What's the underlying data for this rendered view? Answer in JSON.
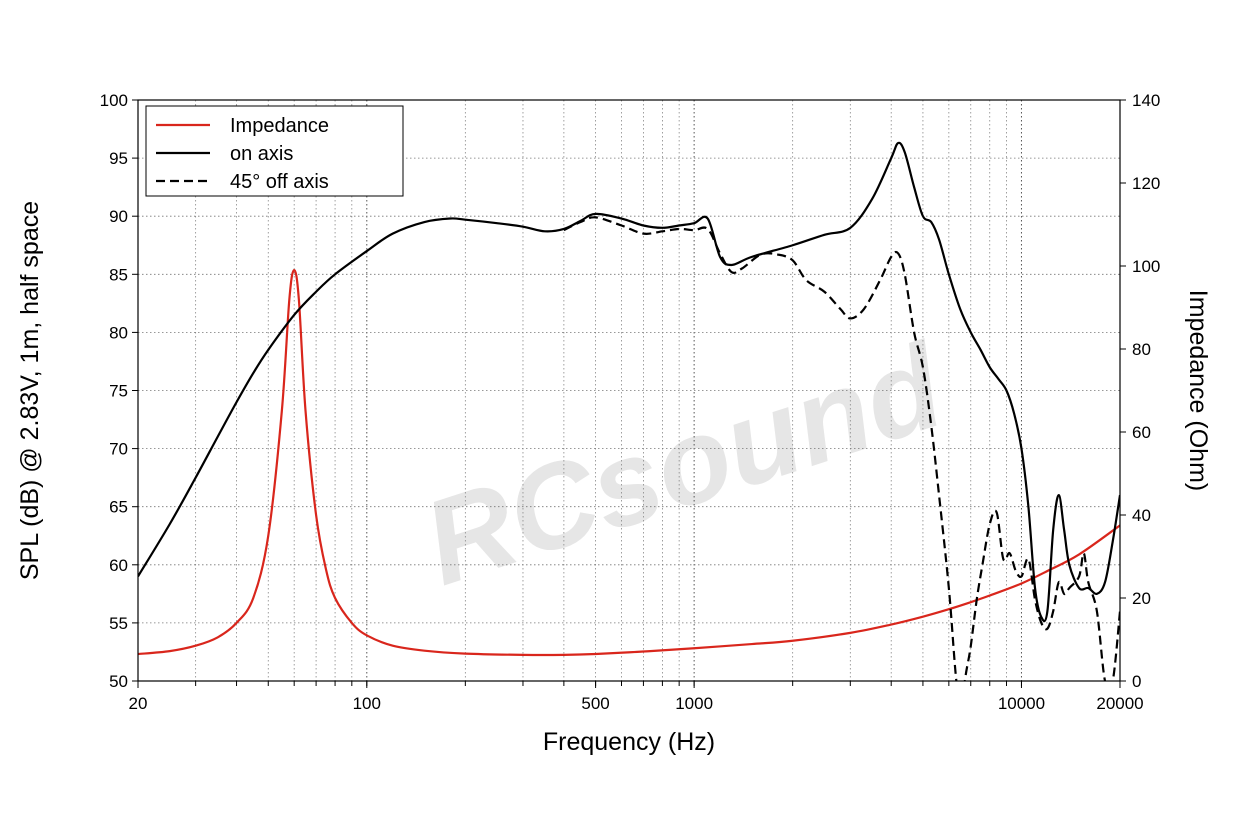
{
  "chart_data": {
    "type": "line",
    "watermark": "RCsound",
    "xaxis": {
      "label": "Frequency (Hz)",
      "scale": "log",
      "range": [
        20,
        20000
      ],
      "tick_labels": [
        {
          "value": 20,
          "text": "20"
        },
        {
          "value": 100,
          "text": "100"
        },
        {
          "value": 500,
          "text": "500"
        },
        {
          "value": 1000,
          "text": "1000"
        },
        {
          "value": 10000,
          "text": "10000"
        },
        {
          "value": 20000,
          "text": "20000"
        }
      ]
    },
    "yaxis_left": {
      "label": "SPL (dB) @ 2.83V, 1m, half space",
      "range": [
        50,
        100
      ],
      "ticks": [
        50,
        55,
        60,
        65,
        70,
        75,
        80,
        85,
        90,
        95,
        100
      ]
    },
    "yaxis_right": {
      "label": "Impedance (Ohm)",
      "range": [
        0,
        140
      ],
      "ticks": [
        0,
        20,
        40,
        60,
        80,
        100,
        120,
        140
      ]
    },
    "grid": true,
    "legend_position": "top-left",
    "series": [
      {
        "name": "Impedance",
        "axis": "right",
        "color": "#d9261c",
        "dash": "solid",
        "points": [
          [
            20,
            6.5
          ],
          [
            25,
            7.2
          ],
          [
            30,
            8.5
          ],
          [
            35,
            10.5
          ],
          [
            40,
            14
          ],
          [
            45,
            20
          ],
          [
            50,
            35
          ],
          [
            55,
            65
          ],
          [
            58,
            92
          ],
          [
            60,
            99
          ],
          [
            62,
            92
          ],
          [
            65,
            65
          ],
          [
            70,
            40
          ],
          [
            75,
            27
          ],
          [
            80,
            20
          ],
          [
            90,
            14
          ],
          [
            100,
            11
          ],
          [
            120,
            8.5
          ],
          [
            150,
            7.3
          ],
          [
            200,
            6.6
          ],
          [
            300,
            6.3
          ],
          [
            400,
            6.3
          ],
          [
            500,
            6.5
          ],
          [
            700,
            7.1
          ],
          [
            1000,
            7.9
          ],
          [
            1500,
            8.9
          ],
          [
            2000,
            9.7
          ],
          [
            3000,
            11.6
          ],
          [
            4000,
            13.6
          ],
          [
            5000,
            15.5
          ],
          [
            6000,
            17.3
          ],
          [
            7000,
            19
          ],
          [
            8000,
            20.6
          ],
          [
            10000,
            23.5
          ],
          [
            12000,
            26.5
          ],
          [
            15000,
            30.5
          ],
          [
            20000,
            37.5
          ]
        ]
      },
      {
        "name": "on axis",
        "axis": "left",
        "color": "#000000",
        "dash": "solid",
        "points": [
          [
            20,
            59
          ],
          [
            25,
            63.5
          ],
          [
            30,
            67.5
          ],
          [
            35,
            71
          ],
          [
            40,
            74
          ],
          [
            45,
            76.5
          ],
          [
            50,
            78.5
          ],
          [
            60,
            81.5
          ],
          [
            70,
            83.5
          ],
          [
            80,
            85
          ],
          [
            100,
            87
          ],
          [
            120,
            88.5
          ],
          [
            150,
            89.5
          ],
          [
            180,
            89.8
          ],
          [
            200,
            89.7
          ],
          [
            250,
            89.4
          ],
          [
            300,
            89.1
          ],
          [
            350,
            88.7
          ],
          [
            400,
            88.9
          ],
          [
            450,
            89.6
          ],
          [
            500,
            90.2
          ],
          [
            600,
            89.8
          ],
          [
            700,
            89.2
          ],
          [
            800,
            89
          ],
          [
            900,
            89.2
          ],
          [
            1000,
            89.4
          ],
          [
            1100,
            89.8
          ],
          [
            1200,
            86.5
          ],
          [
            1300,
            85.8
          ],
          [
            1500,
            86.5
          ],
          [
            2000,
            87.5
          ],
          [
            2500,
            88.4
          ],
          [
            3000,
            89
          ],
          [
            3500,
            91.5
          ],
          [
            4000,
            95
          ],
          [
            4200,
            96.3
          ],
          [
            4400,
            95.5
          ],
          [
            4700,
            92.5
          ],
          [
            5000,
            90
          ],
          [
            5300,
            89.5
          ],
          [
            5600,
            88
          ],
          [
            6000,
            85
          ],
          [
            6500,
            82
          ],
          [
            7000,
            80
          ],
          [
            7500,
            78.5
          ],
          [
            8000,
            77
          ],
          [
            8500,
            76
          ],
          [
            9000,
            75
          ],
          [
            9500,
            73
          ],
          [
            10000,
            70
          ],
          [
            10500,
            65
          ],
          [
            11000,
            58
          ],
          [
            11500,
            55.5
          ],
          [
            12000,
            56
          ],
          [
            12500,
            63
          ],
          [
            13000,
            66
          ],
          [
            13500,
            63
          ],
          [
            14000,
            60
          ],
          [
            15000,
            58
          ],
          [
            16000,
            58
          ],
          [
            17000,
            57.5
          ],
          [
            18000,
            58.5
          ],
          [
            19000,
            62
          ],
          [
            20000,
            66
          ]
        ]
      },
      {
        "name": "45° off axis",
        "axis": "left",
        "color": "#000000",
        "dash": "dashed",
        "points": [
          [
            400,
            88.8
          ],
          [
            450,
            89.5
          ],
          [
            500,
            89.9
          ],
          [
            600,
            89.2
          ],
          [
            700,
            88.5
          ],
          [
            800,
            88.7
          ],
          [
            900,
            88.9
          ],
          [
            1000,
            88.8
          ],
          [
            1100,
            88.9
          ],
          [
            1200,
            86.8
          ],
          [
            1300,
            85.2
          ],
          [
            1400,
            85.5
          ],
          [
            1600,
            86.7
          ],
          [
            1800,
            86.7
          ],
          [
            2000,
            86.2
          ],
          [
            2200,
            84.5
          ],
          [
            2500,
            83.5
          ],
          [
            2800,
            82
          ],
          [
            3000,
            81.2
          ],
          [
            3300,
            82
          ],
          [
            3700,
            84.5
          ],
          [
            4000,
            86.5
          ],
          [
            4200,
            86.8
          ],
          [
            4400,
            85
          ],
          [
            4700,
            80
          ],
          [
            5000,
            77
          ],
          [
            5300,
            72
          ],
          [
            5600,
            66
          ],
          [
            6000,
            58
          ],
          [
            6300,
            50.5
          ],
          [
            6500,
            48
          ],
          [
            6800,
            51
          ],
          [
            7000,
            53
          ],
          [
            7300,
            57
          ],
          [
            7600,
            60
          ],
          [
            8000,
            63.5
          ],
          [
            8400,
            64.5
          ],
          [
            8800,
            60.5
          ],
          [
            9200,
            61
          ],
          [
            9600,
            59.5
          ],
          [
            10000,
            59
          ],
          [
            10500,
            60.5
          ],
          [
            11000,
            57
          ],
          [
            11500,
            55
          ],
          [
            12000,
            54.5
          ],
          [
            12500,
            56
          ],
          [
            13000,
            58.5
          ],
          [
            13500,
            57.5
          ],
          [
            14000,
            58
          ],
          [
            15000,
            59
          ],
          [
            15500,
            61
          ],
          [
            16000,
            58.5
          ],
          [
            17000,
            56
          ],
          [
            18000,
            50
          ],
          [
            19000,
            50
          ],
          [
            20000,
            56
          ]
        ]
      }
    ]
  }
}
